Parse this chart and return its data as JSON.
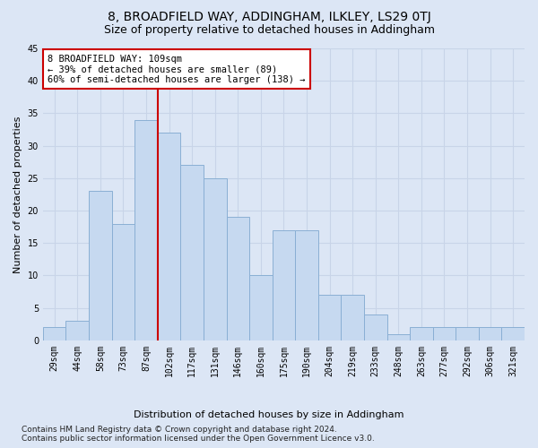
{
  "title1": "8, BROADFIELD WAY, ADDINGHAM, ILKLEY, LS29 0TJ",
  "title2": "Size of property relative to detached houses in Addingham",
  "xlabel": "Distribution of detached houses by size in Addingham",
  "ylabel": "Number of detached properties",
  "bar_labels": [
    "29sqm",
    "44sqm",
    "58sqm",
    "73sqm",
    "87sqm",
    "102sqm",
    "117sqm",
    "131sqm",
    "146sqm",
    "160sqm",
    "175sqm",
    "190sqm",
    "204sqm",
    "219sqm",
    "233sqm",
    "248sqm",
    "263sqm",
    "277sqm",
    "292sqm",
    "306sqm",
    "321sqm"
  ],
  "bar_values": [
    2,
    3,
    23,
    18,
    34,
    32,
    27,
    25,
    19,
    10,
    17,
    17,
    7,
    7,
    4,
    1,
    2,
    2,
    2,
    2,
    2
  ],
  "bar_color": "#c6d9f0",
  "bar_edgecolor": "#8aafd4",
  "vline_color": "#cc0000",
  "annotation_text1": "8 BROADFIELD WAY: 109sqm",
  "annotation_text2": "← 39% of detached houses are smaller (89)",
  "annotation_text3": "60% of semi-detached houses are larger (138) →",
  "annotation_box_facecolor": "#ffffff",
  "annotation_box_edgecolor": "#cc0000",
  "grid_color": "#c8d4e8",
  "fig_facecolor": "#dce6f5",
  "axes_facecolor": "#dce6f5",
  "footnote1": "Contains HM Land Registry data © Crown copyright and database right 2024.",
  "footnote2": "Contains public sector information licensed under the Open Government Licence v3.0.",
  "ylim": [
    0,
    45
  ],
  "yticks": [
    0,
    5,
    10,
    15,
    20,
    25,
    30,
    35,
    40,
    45
  ],
  "title1_fontsize": 10,
  "title2_fontsize": 9,
  "tick_fontsize": 7,
  "ylabel_fontsize": 8,
  "xlabel_fontsize": 8,
  "annotation_fontsize": 7.5,
  "footnote_fontsize": 6.5
}
